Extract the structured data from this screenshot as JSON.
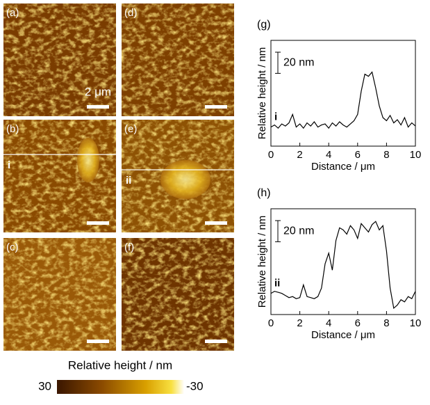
{
  "images": [
    {
      "label": "(a)",
      "scale_bar_label": "2 μm"
    },
    {
      "label": "(b)",
      "line_label": "i"
    },
    {
      "label": "(c)"
    },
    {
      "label": "(d)"
    },
    {
      "label": "(e)",
      "line_label": "ii"
    },
    {
      "label": "(f)"
    }
  ],
  "colorbar": {
    "title": "Relative height / nm",
    "min_label": "30",
    "max_label": "-30"
  },
  "chart_data": [
    {
      "type": "line",
      "panel_label": "(g)",
      "trace_label": "i",
      "xlabel": "Distance / μm",
      "ylabel": "Relative height / nm",
      "scale_bar": {
        "value": 20,
        "label": "20 nm"
      },
      "color": "#000000",
      "xlim": [
        0,
        10
      ],
      "ylim": [
        0,
        100
      ],
      "xticks": [
        0,
        2,
        4,
        6,
        8,
        10
      ],
      "x": [
        0,
        0.25,
        0.5,
        0.75,
        1,
        1.25,
        1.5,
        1.75,
        2,
        2.25,
        2.5,
        2.75,
        3,
        3.25,
        3.5,
        3.75,
        4,
        4.25,
        4.5,
        4.75,
        5,
        5.25,
        5.5,
        5.75,
        6,
        6.25,
        6.5,
        6.75,
        7,
        7.25,
        7.5,
        7.75,
        8,
        8.25,
        8.5,
        8.75,
        9,
        9.25,
        9.5,
        9.75,
        10
      ],
      "values": [
        18,
        20,
        17,
        21,
        19,
        22,
        30,
        18,
        21,
        17,
        22,
        19,
        23,
        18,
        20,
        21,
        17,
        22,
        19,
        23,
        20,
        18,
        21,
        24,
        30,
        52,
        68,
        66,
        70,
        55,
        38,
        27,
        24,
        29,
        22,
        25,
        20,
        27,
        18,
        22,
        19
      ]
    },
    {
      "type": "line",
      "panel_label": "(h)",
      "trace_label": "ii",
      "xlabel": "Distance / μm",
      "ylabel": "Relative height / nm",
      "scale_bar": {
        "value": 20,
        "label": "20 nm"
      },
      "color": "#000000",
      "xlim": [
        0,
        10
      ],
      "ylim": [
        0,
        100
      ],
      "xticks": [
        0,
        2,
        4,
        6,
        8,
        10
      ],
      "x": [
        0,
        0.25,
        0.5,
        0.75,
        1,
        1.25,
        1.5,
        1.75,
        2,
        2.25,
        2.5,
        2.75,
        3,
        3.25,
        3.5,
        3.75,
        4,
        4.25,
        4.5,
        4.75,
        5,
        5.25,
        5.5,
        5.75,
        6,
        6.25,
        6.5,
        6.75,
        7,
        7.25,
        7.5,
        7.75,
        8,
        8.25,
        8.5,
        8.75,
        9,
        9.25,
        9.5,
        9.75,
        10
      ],
      "values": [
        20,
        22,
        21,
        20,
        18,
        16,
        17,
        15,
        16,
        28,
        17,
        16,
        15,
        17,
        25,
        48,
        58,
        42,
        70,
        82,
        80,
        76,
        84,
        80,
        72,
        86,
        82,
        78,
        85,
        88,
        80,
        84,
        60,
        25,
        6,
        9,
        14,
        12,
        17,
        15,
        22
      ]
    }
  ]
}
